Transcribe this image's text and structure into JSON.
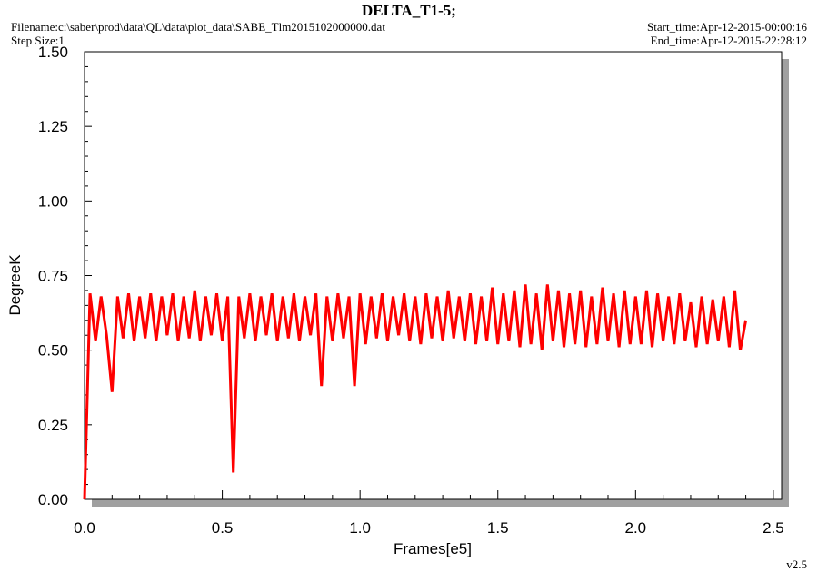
{
  "chart_data": {
    "type": "line",
    "title": "DELTA_T1-5;",
    "filename": "Filename:c:\\saber\\prod\\data\\QL\\data\\plot_data\\SABE_Tlm2015102000000.dat",
    "step_size": "Step Size:1",
    "start_time": "Start_time:Apr-12-2015-00:00:16",
    "end_time": "End_time:Apr-12-2015-22:28:12",
    "version": "v2.5",
    "x_label": "Frames[e5]",
    "y_label": "DegreeK",
    "xlim": [
      0,
      2.53
    ],
    "ylim": [
      0,
      1.5
    ],
    "xticks": [
      {
        "value": 0,
        "label": "0.0"
      },
      0.5,
      {
        "value": 1,
        "label": "1.0"
      },
      1.5,
      {
        "value": 2,
        "label": "2.0"
      },
      2.5
    ],
    "yticks": [
      {
        "value": 0,
        "label": "0.00"
      },
      0.25,
      {
        "value": 0.5,
        "label": "0.50"
      },
      0.75,
      {
        "value": 1,
        "label": "1.00"
      },
      1.25,
      {
        "value": 1.5,
        "label": "1.50"
      }
    ],
    "x": [
      0.0,
      0.02,
      0.04,
      0.06,
      0.08,
      0.1,
      0.12,
      0.14,
      0.16,
      0.18,
      0.2,
      0.22,
      0.24,
      0.26,
      0.28,
      0.3,
      0.32,
      0.34,
      0.36,
      0.38,
      0.4,
      0.42,
      0.44,
      0.46,
      0.48,
      0.5,
      0.52,
      0.54,
      0.56,
      0.58,
      0.6,
      0.62,
      0.64,
      0.66,
      0.68,
      0.7,
      0.72,
      0.74,
      0.76,
      0.78,
      0.8,
      0.82,
      0.84,
      0.86,
      0.88,
      0.9,
      0.92,
      0.94,
      0.96,
      0.98,
      1.0,
      1.02,
      1.04,
      1.06,
      1.08,
      1.1,
      1.12,
      1.14,
      1.16,
      1.18,
      1.2,
      1.22,
      1.24,
      1.26,
      1.28,
      1.3,
      1.32,
      1.34,
      1.36,
      1.38,
      1.4,
      1.42,
      1.44,
      1.46,
      1.48,
      1.5,
      1.52,
      1.54,
      1.56,
      1.58,
      1.6,
      1.62,
      1.64,
      1.66,
      1.68,
      1.7,
      1.72,
      1.74,
      1.76,
      1.78,
      1.8,
      1.82,
      1.84,
      1.86,
      1.88,
      1.9,
      1.92,
      1.94,
      1.96,
      1.98,
      2.0,
      2.02,
      2.04,
      2.06,
      2.08,
      2.1,
      2.12,
      2.14,
      2.16,
      2.18,
      2.2,
      2.22,
      2.24,
      2.26,
      2.28,
      2.3,
      2.32,
      2.34,
      2.36,
      2.38,
      2.4
    ],
    "series": [
      {
        "color": "#ff0000",
        "values": [
          0.0,
          0.69,
          0.53,
          0.68,
          0.55,
          0.36,
          0.68,
          0.54,
          0.69,
          0.53,
          0.68,
          0.54,
          0.69,
          0.53,
          0.68,
          0.55,
          0.69,
          0.53,
          0.68,
          0.54,
          0.7,
          0.53,
          0.68,
          0.55,
          0.69,
          0.53,
          0.68,
          0.09,
          0.68,
          0.54,
          0.69,
          0.53,
          0.68,
          0.55,
          0.69,
          0.53,
          0.68,
          0.54,
          0.69,
          0.53,
          0.68,
          0.55,
          0.69,
          0.38,
          0.68,
          0.53,
          0.69,
          0.54,
          0.68,
          0.38,
          0.69,
          0.52,
          0.68,
          0.54,
          0.69,
          0.53,
          0.68,
          0.55,
          0.69,
          0.53,
          0.68,
          0.52,
          0.69,
          0.54,
          0.68,
          0.53,
          0.7,
          0.54,
          0.68,
          0.53,
          0.69,
          0.52,
          0.68,
          0.53,
          0.71,
          0.52,
          0.69,
          0.53,
          0.7,
          0.51,
          0.72,
          0.52,
          0.69,
          0.5,
          0.72,
          0.53,
          0.7,
          0.51,
          0.69,
          0.52,
          0.7,
          0.51,
          0.68,
          0.52,
          0.71,
          0.53,
          0.69,
          0.51,
          0.7,
          0.52,
          0.68,
          0.52,
          0.7,
          0.51,
          0.69,
          0.53,
          0.68,
          0.52,
          0.69,
          0.53,
          0.66,
          0.51,
          0.68,
          0.52,
          0.67,
          0.53,
          0.68,
          0.51,
          0.7,
          0.5,
          0.6
        ]
      }
    ]
  }
}
